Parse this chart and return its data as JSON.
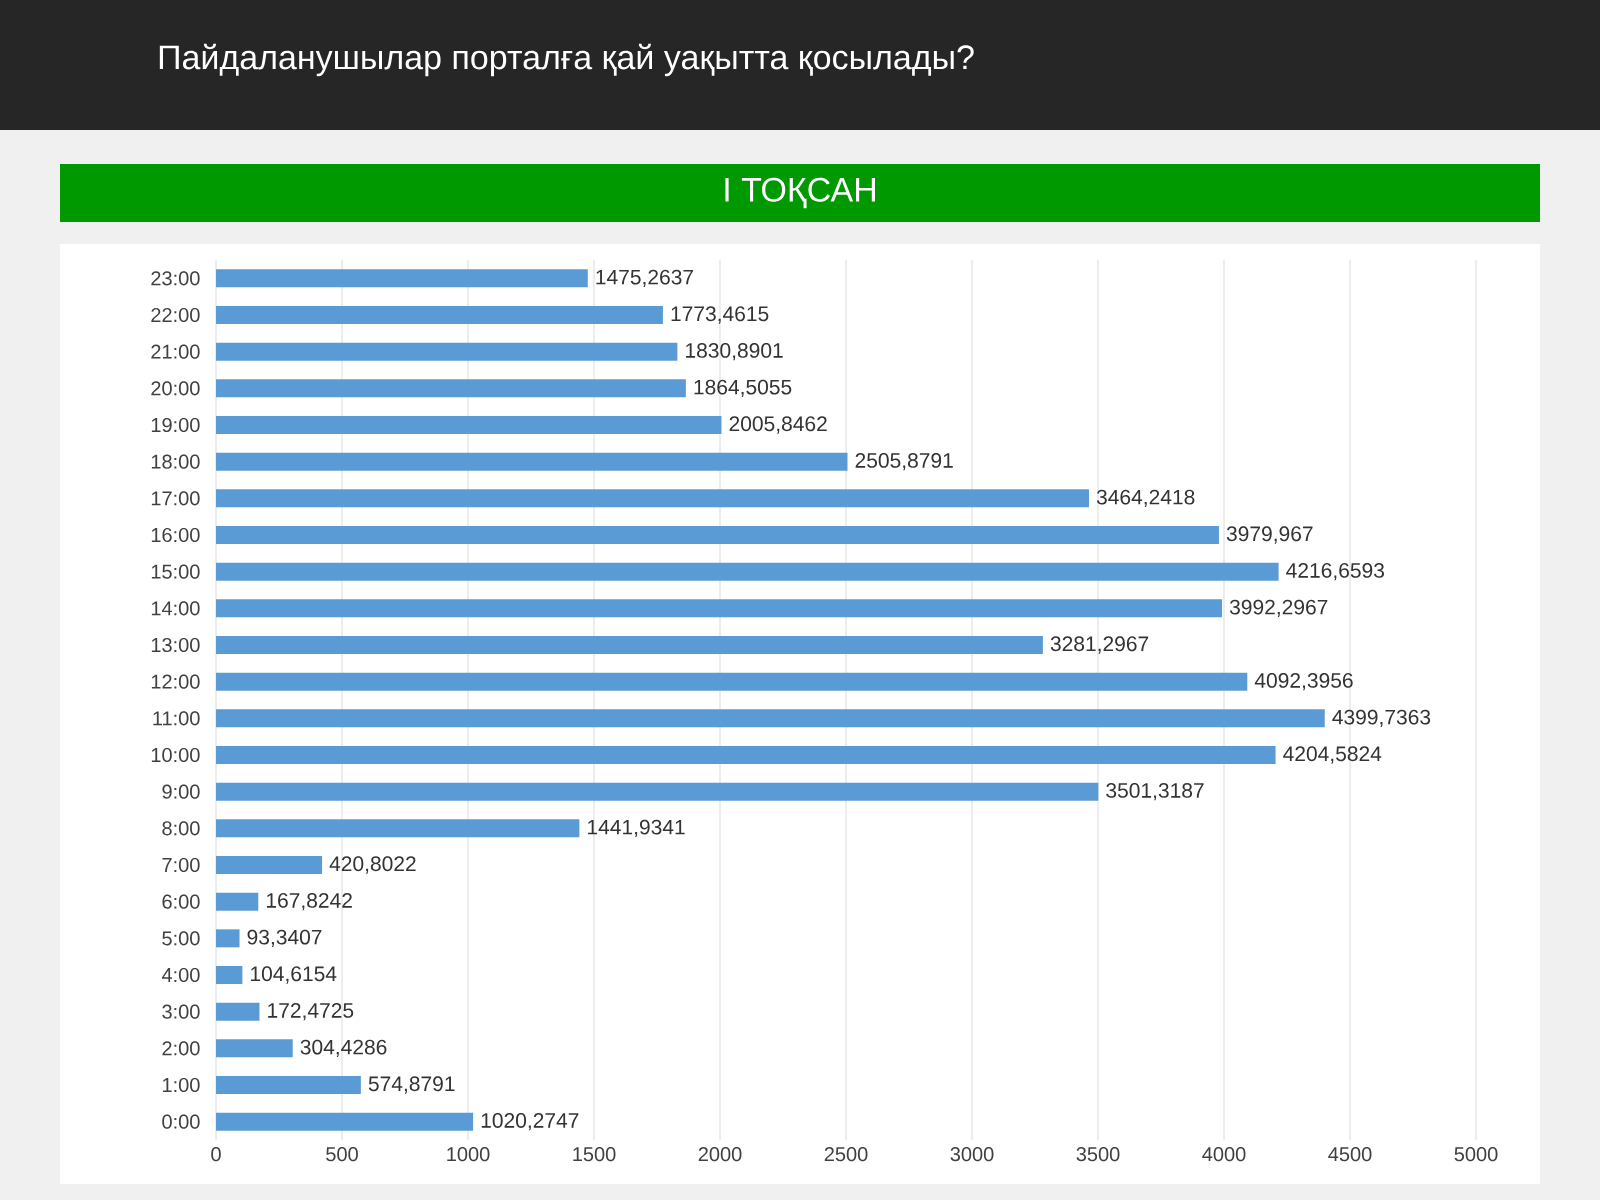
{
  "chart_data": {
    "type": "bar",
    "orientation": "horizontal",
    "title": "Пайдаланушылар порталға қай уақытта қосылады?",
    "subtitle": "I ТОҚСАН",
    "categories": [
      "23:00",
      "22:00",
      "21:00",
      "20:00",
      "19:00",
      "18:00",
      "17:00",
      "16:00",
      "15:00",
      "14:00",
      "13:00",
      "12:00",
      "11:00",
      "10:00",
      "9:00",
      "8:00",
      "7:00",
      "6:00",
      "5:00",
      "4:00",
      "3:00",
      "2:00",
      "1:00",
      "0:00"
    ],
    "values": [
      1475.2637,
      1773.4615,
      1830.8901,
      1864.5055,
      2005.8462,
      2505.8791,
      3464.2418,
      3979.967,
      4216.6593,
      3992.2967,
      3281.2967,
      4092.3956,
      4399.7363,
      4204.5824,
      3501.3187,
      1441.9341,
      420.8022,
      167.8242,
      93.3407,
      104.6154,
      172.4725,
      304.4286,
      574.8791,
      1020.2747
    ],
    "value_labels": [
      "1475,2637",
      "1773,4615",
      "1830,8901",
      "1864,5055",
      "2005,8462",
      "2505,8791",
      "3464,2418",
      "3979,967",
      "4216,6593",
      "3992,2967",
      "3281,2967",
      "4092,3956",
      "4399,7363",
      "4204,5824",
      "3501,3187",
      "1441,9341",
      "420,8022",
      "167,8242",
      "93,3407",
      "104,6154",
      "172,4725",
      "304,4286",
      "574,8791",
      "1020,2747"
    ],
    "color": "#5b9bd5",
    "xlim": [
      0,
      5000
    ],
    "xticks": [
      0,
      500,
      1000,
      1500,
      2000,
      2500,
      3000,
      3500,
      4000,
      4500,
      5000
    ],
    "grid": "x"
  }
}
